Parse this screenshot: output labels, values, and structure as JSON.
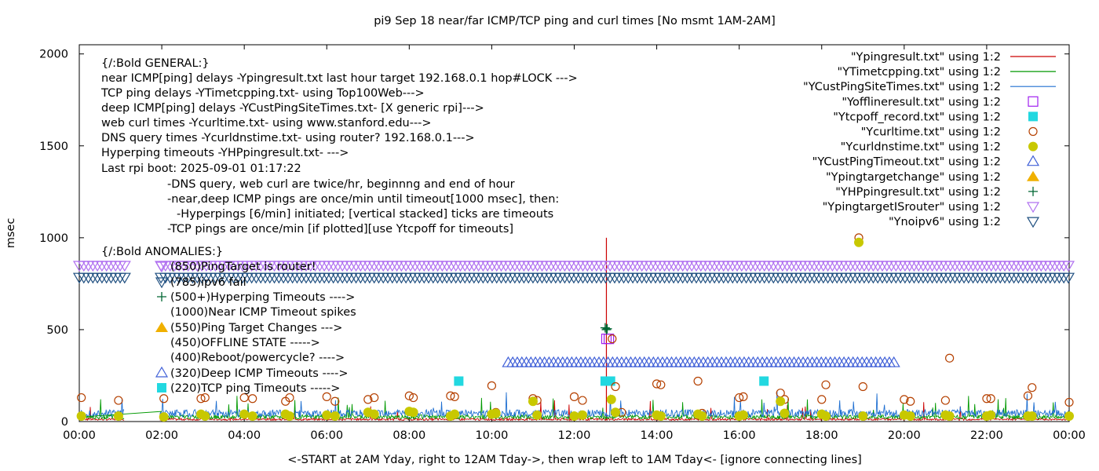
{
  "chart_data": {
    "type": "scatter",
    "title": "pi9 Sep 18  near/far ICMP/TCP ping and curl times [No msmt 1AM-2AM]",
    "xlabel": "<-START at 2AM Yday, right to 12AM Tday->, then wrap left to 1AM Tday<- [ignore connecting lines]",
    "ylabel": "msec",
    "xlim": [
      0,
      24
    ],
    "ylim": [
      0,
      2050
    ],
    "xticks": [
      "00:00",
      "02:00",
      "04:00",
      "06:00",
      "08:00",
      "10:00",
      "12:00",
      "14:00",
      "16:00",
      "18:00",
      "20:00",
      "22:00",
      "00:00"
    ],
    "yticks": [
      "0",
      "500",
      "1000",
      "1500",
      "2000"
    ],
    "grid": false,
    "legend_position": "top-right",
    "legend": [
      {
        "label": "\"Ypingresult.txt\" using 1:2",
        "marker": "line",
        "color": "#cc0000"
      },
      {
        "label": "\"YTimetcpping.txt\" using 1:2",
        "marker": "line",
        "color": "#009900"
      },
      {
        "label": "\"YCustPingSiteTimes.txt\" using 1:2",
        "marker": "line",
        "color": "#1f6fd1"
      },
      {
        "label": "\"Yofflineresult.txt\" using 1:2",
        "marker": "open-square",
        "color": "#a020f0"
      },
      {
        "label": "\"Ytcpoff_record.txt\" using 1:2",
        "marker": "filled-square",
        "color": "#22d8e0"
      },
      {
        "label": "\"Ycurltime.txt\" using 1:2",
        "marker": "open-circle",
        "color": "#b54000"
      },
      {
        "label": "\"Ycurldnstime.txt\" using 1:2",
        "marker": "filled-circle",
        "color": "#c8c800"
      },
      {
        "label": "\"YCustPingTimeout.txt\" using 1:2",
        "marker": "open-triangle-up",
        "color": "#4060d8"
      },
      {
        "label": "\"Ypingtargetchange\" using 1:2",
        "marker": "filled-triangle-up",
        "color": "#f0b000"
      },
      {
        "label": "\"YHPpingresult.txt\" using 1:2",
        "marker": "plus",
        "color": "#006633"
      },
      {
        "label": "\"YpingtargetISrouter\" using 1:2",
        "marker": "open-triangle-down",
        "color": "#b070f0"
      },
      {
        "label": "\"Ynoipv6\" using 1:2",
        "marker": "open-triangle-down",
        "color": "#1f4f80"
      }
    ],
    "annotations": [
      "{/:Bold GENERAL:}",
      "near ICMP[ping] delays -Ypingresult.txt last hour target 192.168.0.1 hop#LOCK --->",
      "TCP ping delays -YTimetcpping.txt- using Top100Web--->",
      "deep ICMP[ping] delays -YCustPingSiteTimes.txt- [X generic rpi]--->",
      "web curl times -Ycurltime.txt- using www.stanford.edu--->",
      "DNS query times -Ycurldnstime.txt- using router? 192.168.0.1--->",
      "Hyperping timeouts -YHPpingresult.txt- --->",
      "Last rpi boot: 2025-09-01 01:17:22",
      "-DNS query, web curl are twice/hr, beginnng and end of hour",
      "-near,deep ICMP pings are once/min until timeout[1000 msec], then:",
      "-Hyperpings [6/min] initiated; [vertical stacked] ticks are timeouts",
      "-TCP pings are once/min [if plotted][use Ytcpoff for timeouts]",
      "{/:Bold ANOMALIES:}",
      "(850)PingTarget is router!",
      "(785)ipv6 fail",
      "(500+)Hyperping Timeouts ---->",
      "(1000)Near ICMP Timeout spikes",
      "(550)Ping Target Changes --->",
      "(450)OFFLINE STATE ----->",
      "(400)Reboot/powercycle? ---->",
      "(320)Deep ICMP Timeouts ---->",
      "(220)TCP ping Timeouts ----->"
    ],
    "series": [
      {
        "name": "\"Ypingresult.txt\" using 1:2",
        "style": "line",
        "baseline": 12,
        "spikes": [
          {
            "x": 12.78,
            "y": 1000
          }
        ]
      },
      {
        "name": "\"YTimetcpping.txt\" using 1:2",
        "style": "line",
        "baseline": 25
      },
      {
        "name": "\"YCustPingSiteTimes.txt\" using 1:2",
        "style": "line",
        "baseline": 45
      },
      {
        "name": "\"Yofflineresult.txt\" using 1:2",
        "style": "points",
        "points": [
          [
            12.78,
            450
          ],
          [
            12.84,
            450
          ]
        ]
      },
      {
        "name": "\"Ytcpoff_record.txt\" using 1:2",
        "style": "points",
        "points": [
          [
            9.2,
            220
          ],
          [
            12.75,
            220
          ],
          [
            12.88,
            220
          ],
          [
            16.6,
            220
          ]
        ]
      },
      {
        "name": "\"Ycurltime.txt\" using 1:2",
        "style": "points",
        "points": [
          [
            0.05,
            130
          ],
          [
            0.95,
            115
          ],
          [
            2.05,
            125
          ],
          [
            2.95,
            125
          ],
          [
            3.05,
            130
          ],
          [
            4.0,
            130
          ],
          [
            4.2,
            125
          ],
          [
            5.0,
            110
          ],
          [
            5.1,
            130
          ],
          [
            6.0,
            135
          ],
          [
            6.2,
            110
          ],
          [
            7.0,
            120
          ],
          [
            7.15,
            130
          ],
          [
            8.0,
            140
          ],
          [
            8.1,
            130
          ],
          [
            9.0,
            140
          ],
          [
            9.1,
            135
          ],
          [
            10.0,
            195
          ],
          [
            10.1,
            50
          ],
          [
            11.0,
            125
          ],
          [
            11.1,
            115
          ],
          [
            12.0,
            135
          ],
          [
            12.2,
            115
          ],
          [
            13.0,
            190
          ],
          [
            13.15,
            50
          ],
          [
            14.0,
            205
          ],
          [
            14.1,
            200
          ],
          [
            15.0,
            220
          ],
          [
            15.1,
            45
          ],
          [
            16.0,
            130
          ],
          [
            16.1,
            135
          ],
          [
            17.0,
            155
          ],
          [
            17.1,
            120
          ],
          [
            18.0,
            120
          ],
          [
            18.1,
            200
          ],
          [
            18.9,
            1000
          ],
          [
            19.0,
            190
          ],
          [
            20.0,
            120
          ],
          [
            20.15,
            110
          ],
          [
            21.0,
            115
          ],
          [
            21.1,
            345
          ],
          [
            22.0,
            125
          ],
          [
            22.1,
            125
          ],
          [
            23.0,
            140
          ],
          [
            23.1,
            185
          ],
          [
            24.0,
            105
          ],
          [
            12.92,
            450
          ]
        ]
      },
      {
        "name": "\"Ycurldnstime.txt\" using 1:2",
        "style": "points",
        "points": [
          [
            0.05,
            30
          ],
          [
            0.95,
            30
          ],
          [
            2.05,
            25
          ],
          [
            2.95,
            40
          ],
          [
            3.05,
            30
          ],
          [
            4.0,
            40
          ],
          [
            4.2,
            30
          ],
          [
            5.0,
            40
          ],
          [
            5.1,
            30
          ],
          [
            6.0,
            35
          ],
          [
            6.2,
            30
          ],
          [
            7.0,
            50
          ],
          [
            7.15,
            40
          ],
          [
            8.0,
            55
          ],
          [
            8.1,
            50
          ],
          [
            9.0,
            30
          ],
          [
            9.1,
            40
          ],
          [
            10.0,
            40
          ],
          [
            10.1,
            45
          ],
          [
            11.0,
            110
          ],
          [
            11.1,
            35
          ],
          [
            12.0,
            30
          ],
          [
            12.2,
            35
          ],
          [
            12.9,
            120
          ],
          [
            13.0,
            50
          ],
          [
            14.0,
            35
          ],
          [
            14.1,
            30
          ],
          [
            15.0,
            40
          ],
          [
            15.1,
            30
          ],
          [
            16.0,
            30
          ],
          [
            16.1,
            35
          ],
          [
            17.0,
            110
          ],
          [
            17.1,
            45
          ],
          [
            18.0,
            40
          ],
          [
            18.1,
            30
          ],
          [
            18.9,
            975
          ],
          [
            19.0,
            30
          ],
          [
            20.0,
            35
          ],
          [
            20.15,
            30
          ],
          [
            21.0,
            35
          ],
          [
            21.1,
            30
          ],
          [
            22.0,
            30
          ],
          [
            22.1,
            35
          ],
          [
            23.0,
            30
          ],
          [
            23.1,
            30
          ],
          [
            24.0,
            30
          ]
        ]
      },
      {
        "name": "\"YCustPingTimeout.txt\" using 1:2",
        "style": "points",
        "range": [
          10.4,
          19.85
        ],
        "y": 320
      },
      {
        "name": "\"Ypingtargetchange\" using 1:2",
        "style": "points",
        "points": []
      },
      {
        "name": "\"YHPpingresult.txt\" using 1:2",
        "style": "points",
        "points": [
          [
            12.75,
            510
          ],
          [
            12.8,
            505
          ],
          [
            12.78,
            500
          ]
        ]
      },
      {
        "name": "\"YpingtargetISrouter\" using 1:2",
        "style": "points",
        "range": [
          0,
          24
        ],
        "y": 850,
        "gap": [
          1.1,
          1.95
        ]
      },
      {
        "name": "\"Ynoipv6\" using 1:2",
        "style": "points",
        "range": [
          0,
          24
        ],
        "y": 785,
        "gap": [
          1.1,
          1.95
        ]
      }
    ]
  }
}
